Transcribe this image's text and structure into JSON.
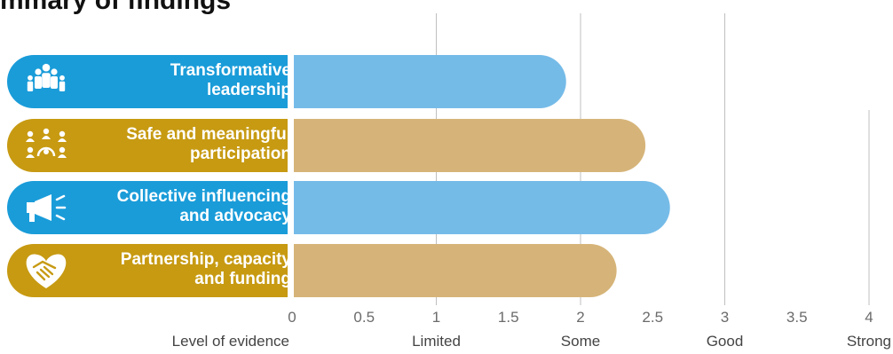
{
  "page_title": "mmary of findings",
  "chart_data": {
    "type": "bar",
    "orientation": "horizontal",
    "categories": [
      "Transformative leadership",
      "Safe and meaningful participation",
      "Collective influencing and advocacy",
      "Partnership, capacity and funding"
    ],
    "category_lines": [
      [
        "Transformative",
        "leadership"
      ],
      [
        "Safe and meaningful",
        "participation"
      ],
      [
        "Collective influencing",
        "and advocacy"
      ],
      [
        "Partnership, capacity",
        "and funding"
      ]
    ],
    "category_icons": [
      "people-group-icon",
      "participation-circle-icon",
      "megaphone-icon",
      "handshake-heart-icon"
    ],
    "values": [
      1.9,
      2.45,
      2.62,
      2.25
    ],
    "xlim": [
      0,
      4
    ],
    "ticks": [
      "0",
      "0.5",
      "1",
      "1.5",
      "2",
      "2.5",
      "3",
      "3.5",
      "4"
    ],
    "tick_values": [
      0,
      0.5,
      1,
      1.5,
      2,
      2.5,
      3,
      3.5,
      4
    ],
    "gridlines_at": [
      1,
      2,
      3,
      4
    ],
    "evidence_axis_title": "Level of evidence",
    "evidence_levels": [
      {
        "label": "Limited",
        "at": 1
      },
      {
        "label": "Some",
        "at": 2
      },
      {
        "label": "Good",
        "at": 3
      },
      {
        "label": "Strong",
        "at": 4
      }
    ],
    "colors": {
      "label_fills": [
        "#1a9cd9",
        "#c79a12",
        "#1a9cd9",
        "#c79a12"
      ],
      "bar_fills": [
        "#75bbe8",
        "#d6b479",
        "#75bbe8",
        "#d6b479"
      ],
      "grid": "#bfbfbf"
    }
  }
}
